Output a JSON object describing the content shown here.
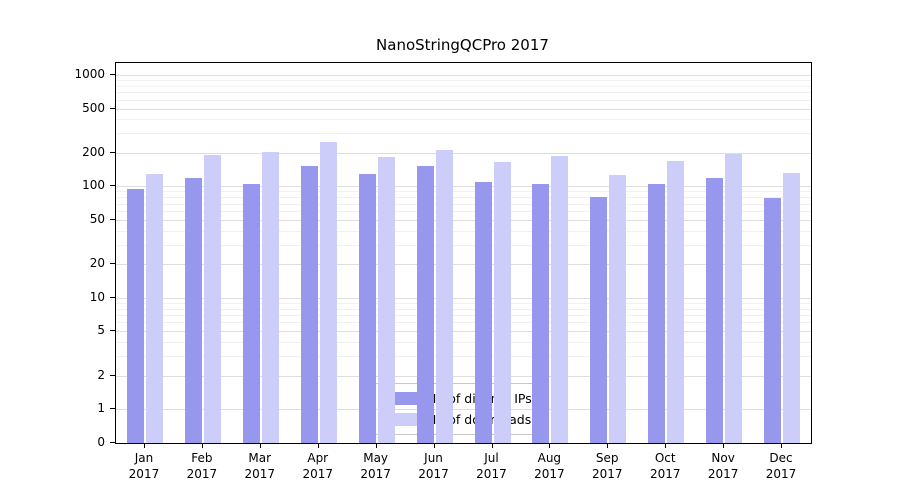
{
  "chart_data": {
    "type": "bar",
    "title": "NanoStringQCPro 2017",
    "scale": "log",
    "grid": true,
    "legend_position": "bottom-center-inside",
    "categories": [
      "Jan",
      "Feb",
      "Mar",
      "Apr",
      "May",
      "Jun",
      "Jul",
      "Aug",
      "Sep",
      "Oct",
      "Nov",
      "Dec"
    ],
    "category_sublabel": "2017",
    "y_ticks": [
      0,
      1,
      2,
      5,
      10,
      20,
      50,
      100,
      200,
      500,
      1000
    ],
    "ylim": [
      0,
      1000
    ],
    "series": [
      {
        "name": "Nb of distinct IPs",
        "color": "#9797ee",
        "values": [
          95,
          118,
          106,
          152,
          130,
          152,
          110,
          105,
          81,
          106,
          119,
          79
        ]
      },
      {
        "name": "Nb of downloads",
        "color": "#cdcdf9",
        "values": [
          130,
          190,
          205,
          252,
          182,
          212,
          166,
          189,
          126,
          170,
          196,
          131
        ]
      }
    ],
    "colors": {
      "major_grid": "#dedede",
      "minor_grid": "#f1f1f1",
      "axis": "#000000"
    }
  }
}
